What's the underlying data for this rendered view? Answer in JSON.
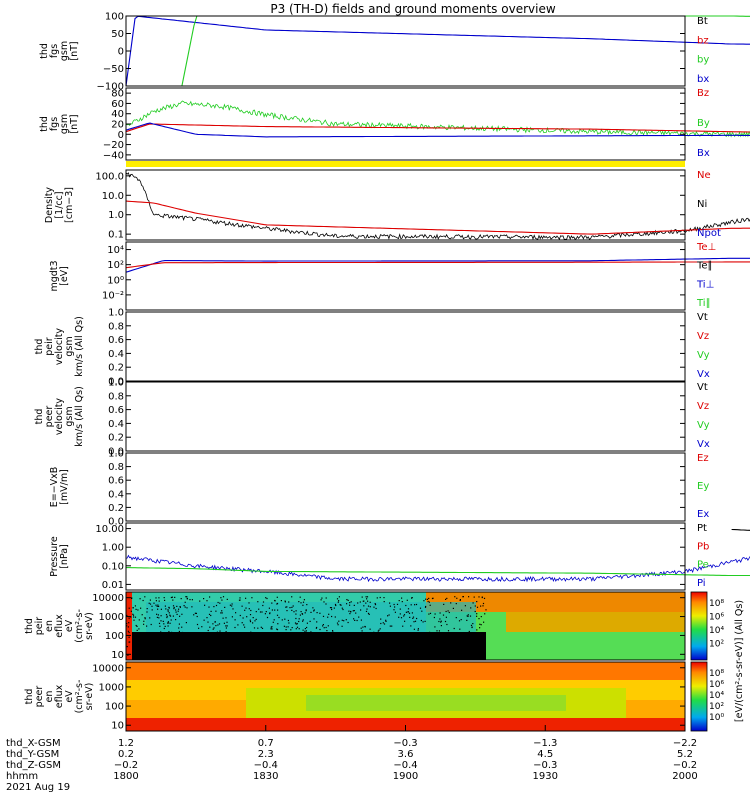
{
  "title": "P3 (TH-D) fields and ground moments overview",
  "colors": {
    "black": "#000000",
    "red": "#dd0000",
    "green": "#22cc22",
    "blue": "#0000cc",
    "yellow": "#ffee00"
  },
  "panels": [
    {
      "key": "bsm",
      "ylabel": [
        "thd",
        "fgs",
        "gsm",
        "[nT]"
      ],
      "scale": "linear",
      "ylim": [
        -100,
        100
      ],
      "ticks": [
        "100",
        "50",
        "0",
        "−50",
        "−100"
      ],
      "tick_values": [
        100,
        50,
        0,
        -50,
        -100
      ],
      "legend": [
        {
          "label": "Bt",
          "color": "#000000"
        },
        {
          "label": "bz",
          "color": "#dd0000"
        },
        {
          "label": "by",
          "color": "#22cc22"
        },
        {
          "label": "bx",
          "color": "#0000cc"
        }
      ]
    },
    {
      "key": "bfull",
      "ylabel": [
        "thd",
        "fgs",
        "gsm",
        "[nT]"
      ],
      "scale": "linear",
      "ylim": [
        -50,
        90
      ],
      "ticks": [
        "80",
        "60",
        "40",
        "20",
        "0",
        "−20",
        "−40"
      ],
      "tick_values": [
        80,
        60,
        40,
        20,
        0,
        -20,
        -40
      ],
      "legend": [
        {
          "label": "Bz",
          "color": "#dd0000"
        },
        {
          "label": "By",
          "color": "#22cc22"
        },
        {
          "label": "Bx",
          "color": "#0000cc"
        }
      ]
    },
    {
      "key": "density",
      "ylabel": [
        "Density",
        "[1/cc]",
        "[cm−3]"
      ],
      "scale": "log",
      "ylim": [
        0.05,
        200
      ],
      "ticks": [
        "100.0",
        "10.0",
        "1.0",
        "0.1"
      ],
      "tick_values": [
        100,
        10,
        1,
        0.1
      ],
      "legend": [
        {
          "label": "Ne",
          "color": "#dd0000"
        },
        {
          "label": "Ni",
          "color": "#000000"
        },
        {
          "label": "Npot",
          "color": "#0000cc"
        }
      ]
    },
    {
      "key": "temp",
      "ylabel": [
        "mgdt3",
        "[eV]"
      ],
      "scale": "log",
      "ylim": [
        0.0001,
        100000
      ],
      "ticks": [
        "10⁴",
        "10²",
        "10⁰",
        "10⁻²"
      ],
      "tick_values": [
        10000,
        100,
        1,
        0.01
      ],
      "legend": [
        {
          "label": "Te⊥",
          "color": "#dd0000"
        },
        {
          "label": "Te∥",
          "color": "#000000"
        },
        {
          "label": "Ti⊥",
          "color": "#0000cc"
        },
        {
          "label": "Ti∥",
          "color": "#22cc22"
        }
      ]
    },
    {
      "key": "vi",
      "ylabel": [
        "thd",
        "peir",
        "velocity",
        "gsm",
        "km/s (All Qs)"
      ],
      "scale": "linear",
      "ylim": [
        0,
        1
      ],
      "ticks": [
        "1.0",
        "0.8",
        "0.6",
        "0.4",
        "0.2",
        "0.0"
      ],
      "tick_values": [
        1,
        0.8,
        0.6,
        0.4,
        0.2,
        0
      ],
      "legend": [
        {
          "label": "Vt",
          "color": "#000000"
        },
        {
          "label": "Vz",
          "color": "#dd0000"
        },
        {
          "label": "Vy",
          "color": "#22cc22"
        },
        {
          "label": "Vx",
          "color": "#0000cc"
        }
      ]
    },
    {
      "key": "ve",
      "ylabel": [
        "thd",
        "peer",
        "velocity",
        "gsm",
        "km/s (All Qs)"
      ],
      "scale": "linear",
      "ylim": [
        0,
        1
      ],
      "ticks": [
        "1.0",
        "0.8",
        "0.6",
        "0.4",
        "0.2",
        "0.0"
      ],
      "tick_values": [
        1,
        0.8,
        0.6,
        0.4,
        0.2,
        0
      ],
      "legend": [
        {
          "label": "Vt",
          "color": "#000000"
        },
        {
          "label": "Vz",
          "color": "#dd0000"
        },
        {
          "label": "Vy",
          "color": "#22cc22"
        },
        {
          "label": "Vx",
          "color": "#0000cc"
        }
      ]
    },
    {
      "key": "efield",
      "ylabel": [
        "E=−VxB",
        "[mV/m]"
      ],
      "scale": "linear",
      "ylim": [
        0,
        1
      ],
      "ticks": [
        "1.0",
        "0.8",
        "0.6",
        "0.4",
        "0.2",
        "0.0"
      ],
      "tick_values": [
        1,
        0.8,
        0.6,
        0.4,
        0.2,
        0
      ],
      "legend": [
        {
          "label": "Ez",
          "color": "#dd0000"
        },
        {
          "label": "Ey",
          "color": "#22cc22"
        },
        {
          "label": "Ex",
          "color": "#0000cc"
        }
      ]
    },
    {
      "key": "pressure",
      "ylabel": [
        "Pressure",
        "[nPa]"
      ],
      "scale": "log",
      "ylim": [
        0.005,
        20
      ],
      "ticks": [
        "10.00",
        "1.00",
        "0.10",
        "0.01"
      ],
      "tick_values": [
        10,
        1,
        0.1,
        0.01
      ],
      "legend": [
        {
          "label": "Pt",
          "color": "#000000"
        },
        {
          "label": "Pb",
          "color": "#dd0000"
        },
        {
          "label": "Pe",
          "color": "#22cc22"
        },
        {
          "label": "Pi",
          "color": "#0000cc"
        }
      ]
    },
    {
      "key": "ion_spec",
      "ylabel": [
        "thd",
        "peir",
        "en",
        "eflux",
        "eV",
        "(cm²-s-",
        "sr-eV)"
      ],
      "scale": "log",
      "ylim": [
        5,
        20000
      ],
      "ticks": [
        "10000",
        "1000",
        "100",
        "10"
      ],
      "tick_values": [
        10000,
        1000,
        100,
        10
      ],
      "legend": []
    },
    {
      "key": "elec_spec",
      "ylabel": [
        "thd",
        "peer",
        "en",
        "eflux",
        "eV",
        "(cm²-s-",
        "sr-eV)"
      ],
      "scale": "log",
      "ylim": [
        5,
        20000
      ],
      "ticks": [
        "10000",
        "1000",
        "100",
        "10"
      ],
      "tick_values": [
        10000,
        1000,
        100,
        10
      ],
      "legend": []
    }
  ],
  "colorbars": [
    {
      "ticks": [
        "10⁸",
        "10⁶",
        "10⁴",
        "10²"
      ],
      "label": "[eV/(cm²-s-sr-eV)] (All Qs)"
    },
    {
      "ticks": [
        "10⁸",
        "10⁶",
        "10⁴",
        "10²",
        "10⁰"
      ],
      "label": "[eV/(cm²-s-sr-eV)] (All Qs)"
    }
  ],
  "xaxis": {
    "row_labels": [
      "thd_X-GSM",
      "thd_Y-GSM",
      "thd_Z-GSM",
      "hhmm",
      "2021 Aug 19"
    ],
    "columns": [
      {
        "x": "1.2",
        "y": "0.2",
        "z": "−0.2",
        "t": "1800"
      },
      {
        "x": "0.7",
        "y": "2.3",
        "z": "−0.4",
        "t": "1830"
      },
      {
        "x": "−0.3",
        "y": "3.6",
        "z": "−0.4",
        "t": "1900"
      },
      {
        "x": "−1.3",
        "y": "4.5",
        "z": "−0.3",
        "t": "1930"
      },
      {
        "x": "−2.2",
        "y": "5.2",
        "z": "−0.2",
        "t": "2000"
      }
    ]
  },
  "chart_data": {
    "type": "line",
    "title": "P3 (TH-D) fields and ground moments overview",
    "x_time_hhmm": [
      "1800",
      "1830",
      "1900",
      "1930",
      "2000"
    ],
    "series": [
      {
        "panel": "bsm",
        "name": "bx",
        "x": [
          1800,
          1802,
          1830,
          1900,
          1930,
          2000
        ],
        "y": [
          -100,
          100,
          60,
          35,
          20,
          10
        ]
      },
      {
        "panel": "bsm",
        "name": "by",
        "x": [
          1812,
          1815,
          1830,
          1900,
          1930,
          2000
        ],
        "y": [
          -100,
          100,
          100,
          100,
          100,
          82
        ]
      },
      {
        "panel": "bfull",
        "name": "By",
        "x": [
          1800,
          1806,
          1812,
          1820,
          1830,
          1845,
          1900,
          1930,
          2000
        ],
        "y": [
          15,
          45,
          60,
          55,
          38,
          20,
          5,
          0,
          -3
        ]
      },
      {
        "panel": "bfull",
        "name": "Bz",
        "x": [
          1800,
          1805,
          1815,
          1830,
          1900,
          1930,
          2000
        ],
        "y": [
          5,
          20,
          18,
          15,
          10,
          5,
          -5
        ]
      },
      {
        "panel": "bfull",
        "name": "Bx",
        "x": [
          1800,
          1805,
          1815,
          1830,
          1900,
          1930,
          2000
        ],
        "y": [
          8,
          22,
          0,
          -5,
          -3,
          -2,
          -5
        ]
      },
      {
        "panel": "density",
        "name": "Ni",
        "x": [
          1800,
          1803,
          1806,
          1815,
          1830,
          1845,
          1900,
          1920,
          1935,
          2000
        ],
        "y": [
          150,
          60,
          1.0,
          0.6,
          0.2,
          0.08,
          0.07,
          0.15,
          0.7,
          0.7
        ]
      },
      {
        "panel": "density",
        "name": "Ne",
        "x": [
          1800,
          1806,
          1815,
          1830,
          1900,
          1930,
          2000
        ],
        "y": [
          5,
          4,
          1.2,
          0.3,
          0.1,
          0.2,
          0.25
        ]
      },
      {
        "panel": "temp",
        "name": "Ti⊥",
        "x": [
          1800,
          1808,
          1830,
          1900,
          1930,
          2000
        ],
        "y": [
          10,
          350,
          300,
          330,
          700,
          700
        ]
      },
      {
        "panel": "temp",
        "name": "Te⊥",
        "x": [
          1800,
          1808,
          1830,
          1900,
          1930,
          2000
        ],
        "y": [
          40,
          180,
          190,
          210,
          230,
          240
        ]
      },
      {
        "panel": "pressure",
        "name": "Pt",
        "x": [
          1930,
          1945,
          2000
        ],
        "y": [
          9,
          6,
          4
        ]
      },
      {
        "panel": "pressure",
        "name": "Pi",
        "x": [
          1800,
          1815,
          1830,
          1845,
          1900,
          1920,
          1935,
          1950,
          2000
        ],
        "y": [
          0.3,
          0.1,
          0.05,
          0.02,
          0.02,
          0.05,
          0.3,
          0.6,
          0.7
        ]
      },
      {
        "panel": "pressure",
        "name": "Pe",
        "x": [
          1800,
          1815,
          1830,
          1900,
          1930,
          2000
        ],
        "y": [
          0.08,
          0.07,
          0.05,
          0.04,
          0.03,
          0.03
        ]
      }
    ]
  }
}
